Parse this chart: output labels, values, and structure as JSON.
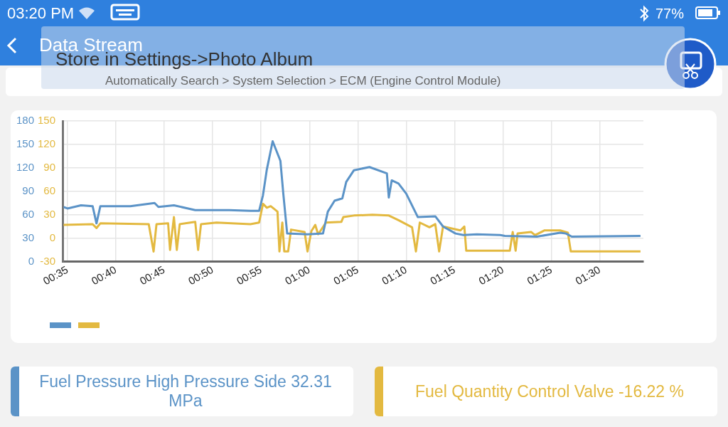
{
  "chart_data": {
    "type": "line",
    "title": "Data Stream",
    "subtitle": "Automatically Search > System Selection > ECM (Engine Control Module)",
    "annotations": [
      "03:20 PM",
      "77%",
      "Store in Settings->Photo Album"
    ],
    "xlim": [
      34.5,
      94.5
    ],
    "xticks": [
      {
        "value": 35,
        "label": "00:35"
      },
      {
        "value": 40,
        "label": "00:40"
      },
      {
        "value": 45,
        "label": "00:45"
      },
      {
        "value": 50,
        "label": "00:50"
      },
      {
        "value": 55,
        "label": "00:55"
      },
      {
        "value": 60,
        "label": "01:00"
      },
      {
        "value": 65,
        "label": "01:05"
      },
      {
        "value": 70,
        "label": "01:10"
      },
      {
        "value": 75,
        "label": "01:15"
      },
      {
        "value": 80,
        "label": "01:20"
      },
      {
        "value": 85,
        "label": "01:25"
      },
      {
        "value": 90,
        "label": "01:30"
      }
    ],
    "ylim": [
      0,
      180
    ],
    "yticks": [
      0,
      30,
      60,
      90,
      120,
      150,
      180
    ],
    "y2lim": [
      -30,
      150
    ],
    "y2ticks": [
      -30,
      0,
      30,
      60,
      90,
      120,
      150
    ],
    "grid": true,
    "legend": "bottom",
    "series": [
      {
        "name": "Fuel Pressure High Pressure Side 32.31 MPa",
        "color": "#5b93c7",
        "x": [
          34.6,
          35.0,
          36.4,
          37.6,
          38.0,
          38.4,
          41.5,
          44.0,
          44.4,
          46.0,
          48.2,
          51.7,
          53.9,
          54.8,
          55.2,
          55.6,
          56.2,
          57.0,
          57.3,
          57.7,
          59.8,
          61.4,
          61.9,
          62.6,
          63.4,
          63.8,
          64.6,
          66.2,
          68.0,
          68.2,
          68.5,
          69.2,
          70.0,
          71.2,
          73.0,
          73.8,
          75.1,
          75.9,
          77.3,
          79.7,
          80.2,
          83.5,
          85.9,
          86.5,
          87.1,
          94.2
        ],
        "values": [
          70,
          68,
          72,
          71,
          49,
          71,
          71,
          75,
          70,
          72,
          66,
          66,
          65,
          65,
          85,
          118,
          154,
          129,
          87,
          36,
          35,
          36,
          64,
          78,
          81,
          102,
          117,
          121,
          113,
          82,
          104,
          100,
          87,
          57,
          58,
          45,
          36,
          34,
          35,
          34,
          33,
          32,
          37,
          36,
          32,
          33
        ]
      },
      {
        "name": "Fuel Quantity Control Valve -16.22 %",
        "color": "#e3b940",
        "axis": "y2",
        "x": [
          34.6,
          37.6,
          38.0,
          38.4,
          43.4,
          43.9,
          44.2,
          45.4,
          45.6,
          46.0,
          46.3,
          46.6,
          48.2,
          48.5,
          48.8,
          50.4,
          53.9,
          54.8,
          55.2,
          55.6,
          56.0,
          56.7,
          56.9,
          57.2,
          57.4,
          57.8,
          58.1,
          59.5,
          59.8,
          60.2,
          60.6,
          60.9,
          61.7,
          63.3,
          63.5,
          64.6,
          66.5,
          68.2,
          69.2,
          70.6,
          71.0,
          71.4,
          72.4,
          73.0,
          73.4,
          73.8,
          75.6,
          76.0,
          76.2,
          80.7,
          81.0,
          81.3,
          81.5,
          82.9,
          83.3,
          84.3,
          85.9,
          86.7,
          87.0,
          94.2
        ],
        "values": [
          17,
          18,
          13,
          19,
          18,
          -17,
          18,
          19,
          -15,
          27,
          -15,
          18,
          21,
          -15,
          18,
          20,
          18,
          20,
          44,
          39,
          41,
          34,
          -17,
          20,
          -17,
          -17,
          11,
          8,
          -17,
          9,
          17,
          5,
          20,
          21,
          27,
          29,
          30,
          29,
          23,
          14,
          -17,
          20,
          14,
          18,
          -17,
          15,
          10,
          15,
          -16,
          -16,
          8,
          -16,
          6,
          8,
          4,
          10,
          10,
          7,
          -17,
          -17
        ]
      }
    ]
  }
}
